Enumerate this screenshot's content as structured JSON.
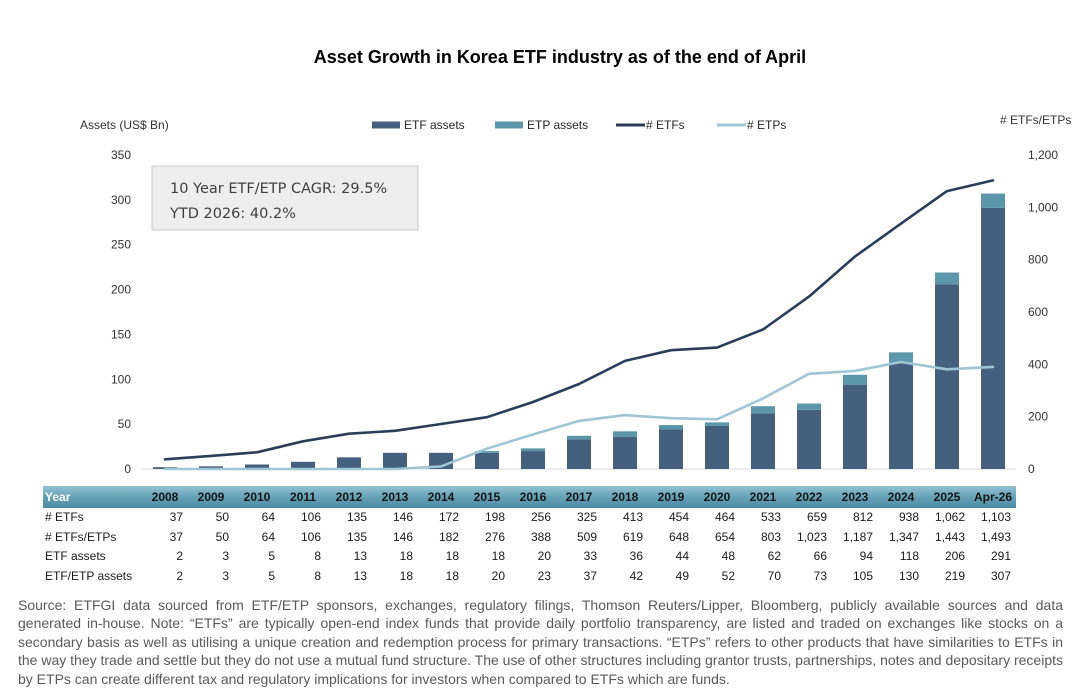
{
  "chart_data": {
    "type": "bar",
    "stacked": true,
    "title": "Asset Growth in Korea ETF industry as of the end of April",
    "categories": [
      "2008",
      "2009",
      "2010",
      "2011",
      "2012",
      "2013",
      "2014",
      "2015",
      "2016",
      "2017",
      "2018",
      "2019",
      "2020",
      "2021",
      "2022",
      "2023",
      "2024",
      "2025",
      "Apr-26"
    ],
    "series": [
      {
        "name": "ETF assets",
        "type": "bar",
        "axis": "left",
        "color": "#44607e",
        "values": [
          2,
          3,
          5,
          8,
          13,
          18,
          18,
          18,
          20,
          33,
          36,
          44,
          48,
          62,
          66,
          94,
          118,
          206,
          291
        ]
      },
      {
        "name": "ETP assets",
        "type": "bar",
        "axis": "left",
        "color": "#5b96ab",
        "values": [
          0,
          0,
          0,
          0,
          0,
          0,
          0,
          2,
          3,
          4,
          6,
          5,
          4,
          8,
          7,
          11,
          12,
          13,
          16
        ]
      },
      {
        "name": "# ETFs",
        "type": "line",
        "axis": "right",
        "color": "#2a3e5a",
        "values": [
          37,
          50,
          64,
          106,
          135,
          146,
          172,
          198,
          256,
          325,
          413,
          454,
          464,
          533,
          659,
          812,
          938,
          1062,
          1103
        ]
      },
      {
        "name": "# ETPs",
        "type": "line",
        "axis": "right",
        "color": "#9fc6d5",
        "values": [
          0,
          0,
          0,
          0,
          0,
          0,
          10,
          78,
          132,
          184,
          206,
          194,
          190,
          270,
          364,
          375,
          409,
          381,
          390
        ]
      }
    ],
    "y_left": {
      "label": "Assets (US$ Bn)",
      "range": [
        0,
        350
      ],
      "ticks": [
        "0",
        "50",
        "100",
        "150",
        "200",
        "250",
        "300",
        "350"
      ]
    },
    "y_right": {
      "label": "# ETFs/ETPs",
      "range": [
        0,
        1200
      ],
      "ticks": [
        "0",
        "200",
        "400",
        "600",
        "800",
        "1,000",
        "1,200"
      ]
    },
    "legend": "top",
    "grid": false,
    "annotations": [
      "10 Year ETF/ETP CAGR: 29.5%",
      "YTD 2026: 40.2%"
    ]
  },
  "data_table": {
    "header_label": "Year",
    "rows": [
      {
        "label": "# ETFs",
        "values": [
          "37",
          "50",
          "64",
          "106",
          "135",
          "146",
          "172",
          "198",
          "256",
          "325",
          "413",
          "454",
          "464",
          "533",
          "659",
          "812",
          "938",
          "1,062",
          "1,103"
        ]
      },
      {
        "label": "# ETFs/ETPs",
        "values": [
          "37",
          "50",
          "64",
          "106",
          "135",
          "146",
          "182",
          "276",
          "388",
          "509",
          "619",
          "648",
          "654",
          "803",
          "1,023",
          "1,187",
          "1,347",
          "1,443",
          "1,493"
        ]
      },
      {
        "label": "ETF assets",
        "values": [
          "2",
          "3",
          "5",
          "8",
          "13",
          "18",
          "18",
          "18",
          "20",
          "33",
          "36",
          "44",
          "48",
          "62",
          "66",
          "94",
          "118",
          "206",
          "291"
        ]
      },
      {
        "label": "ETF/ETP assets",
        "values": [
          "2",
          "3",
          "5",
          "8",
          "13",
          "18",
          "18",
          "20",
          "23",
          "37",
          "42",
          "49",
          "52",
          "70",
          "73",
          "105",
          "130",
          "219",
          "307"
        ]
      }
    ]
  },
  "source_note": "Source: ETFGI data sourced from ETF/ETP sponsors, exchanges, regulatory filings, Thomson Reuters/Lipper, Bloomberg, publicly available sources and data generated in-house. Note: “ETFs” are typically open-end index funds that provide daily portfolio transparency, are listed and traded on exchanges like stocks on a secondary basis as well as utilising a unique creation and redemption process for primary transactions. “ETPs” refers to other products that have similarities to ETFs in the way they trade and settle but they do not use a mutual fund structure. The use of other structures including grantor trusts, partnerships, notes and depositary receipts by ETPs can create different tax and regulatory implications for investors when compared to ETFs which are funds."
}
